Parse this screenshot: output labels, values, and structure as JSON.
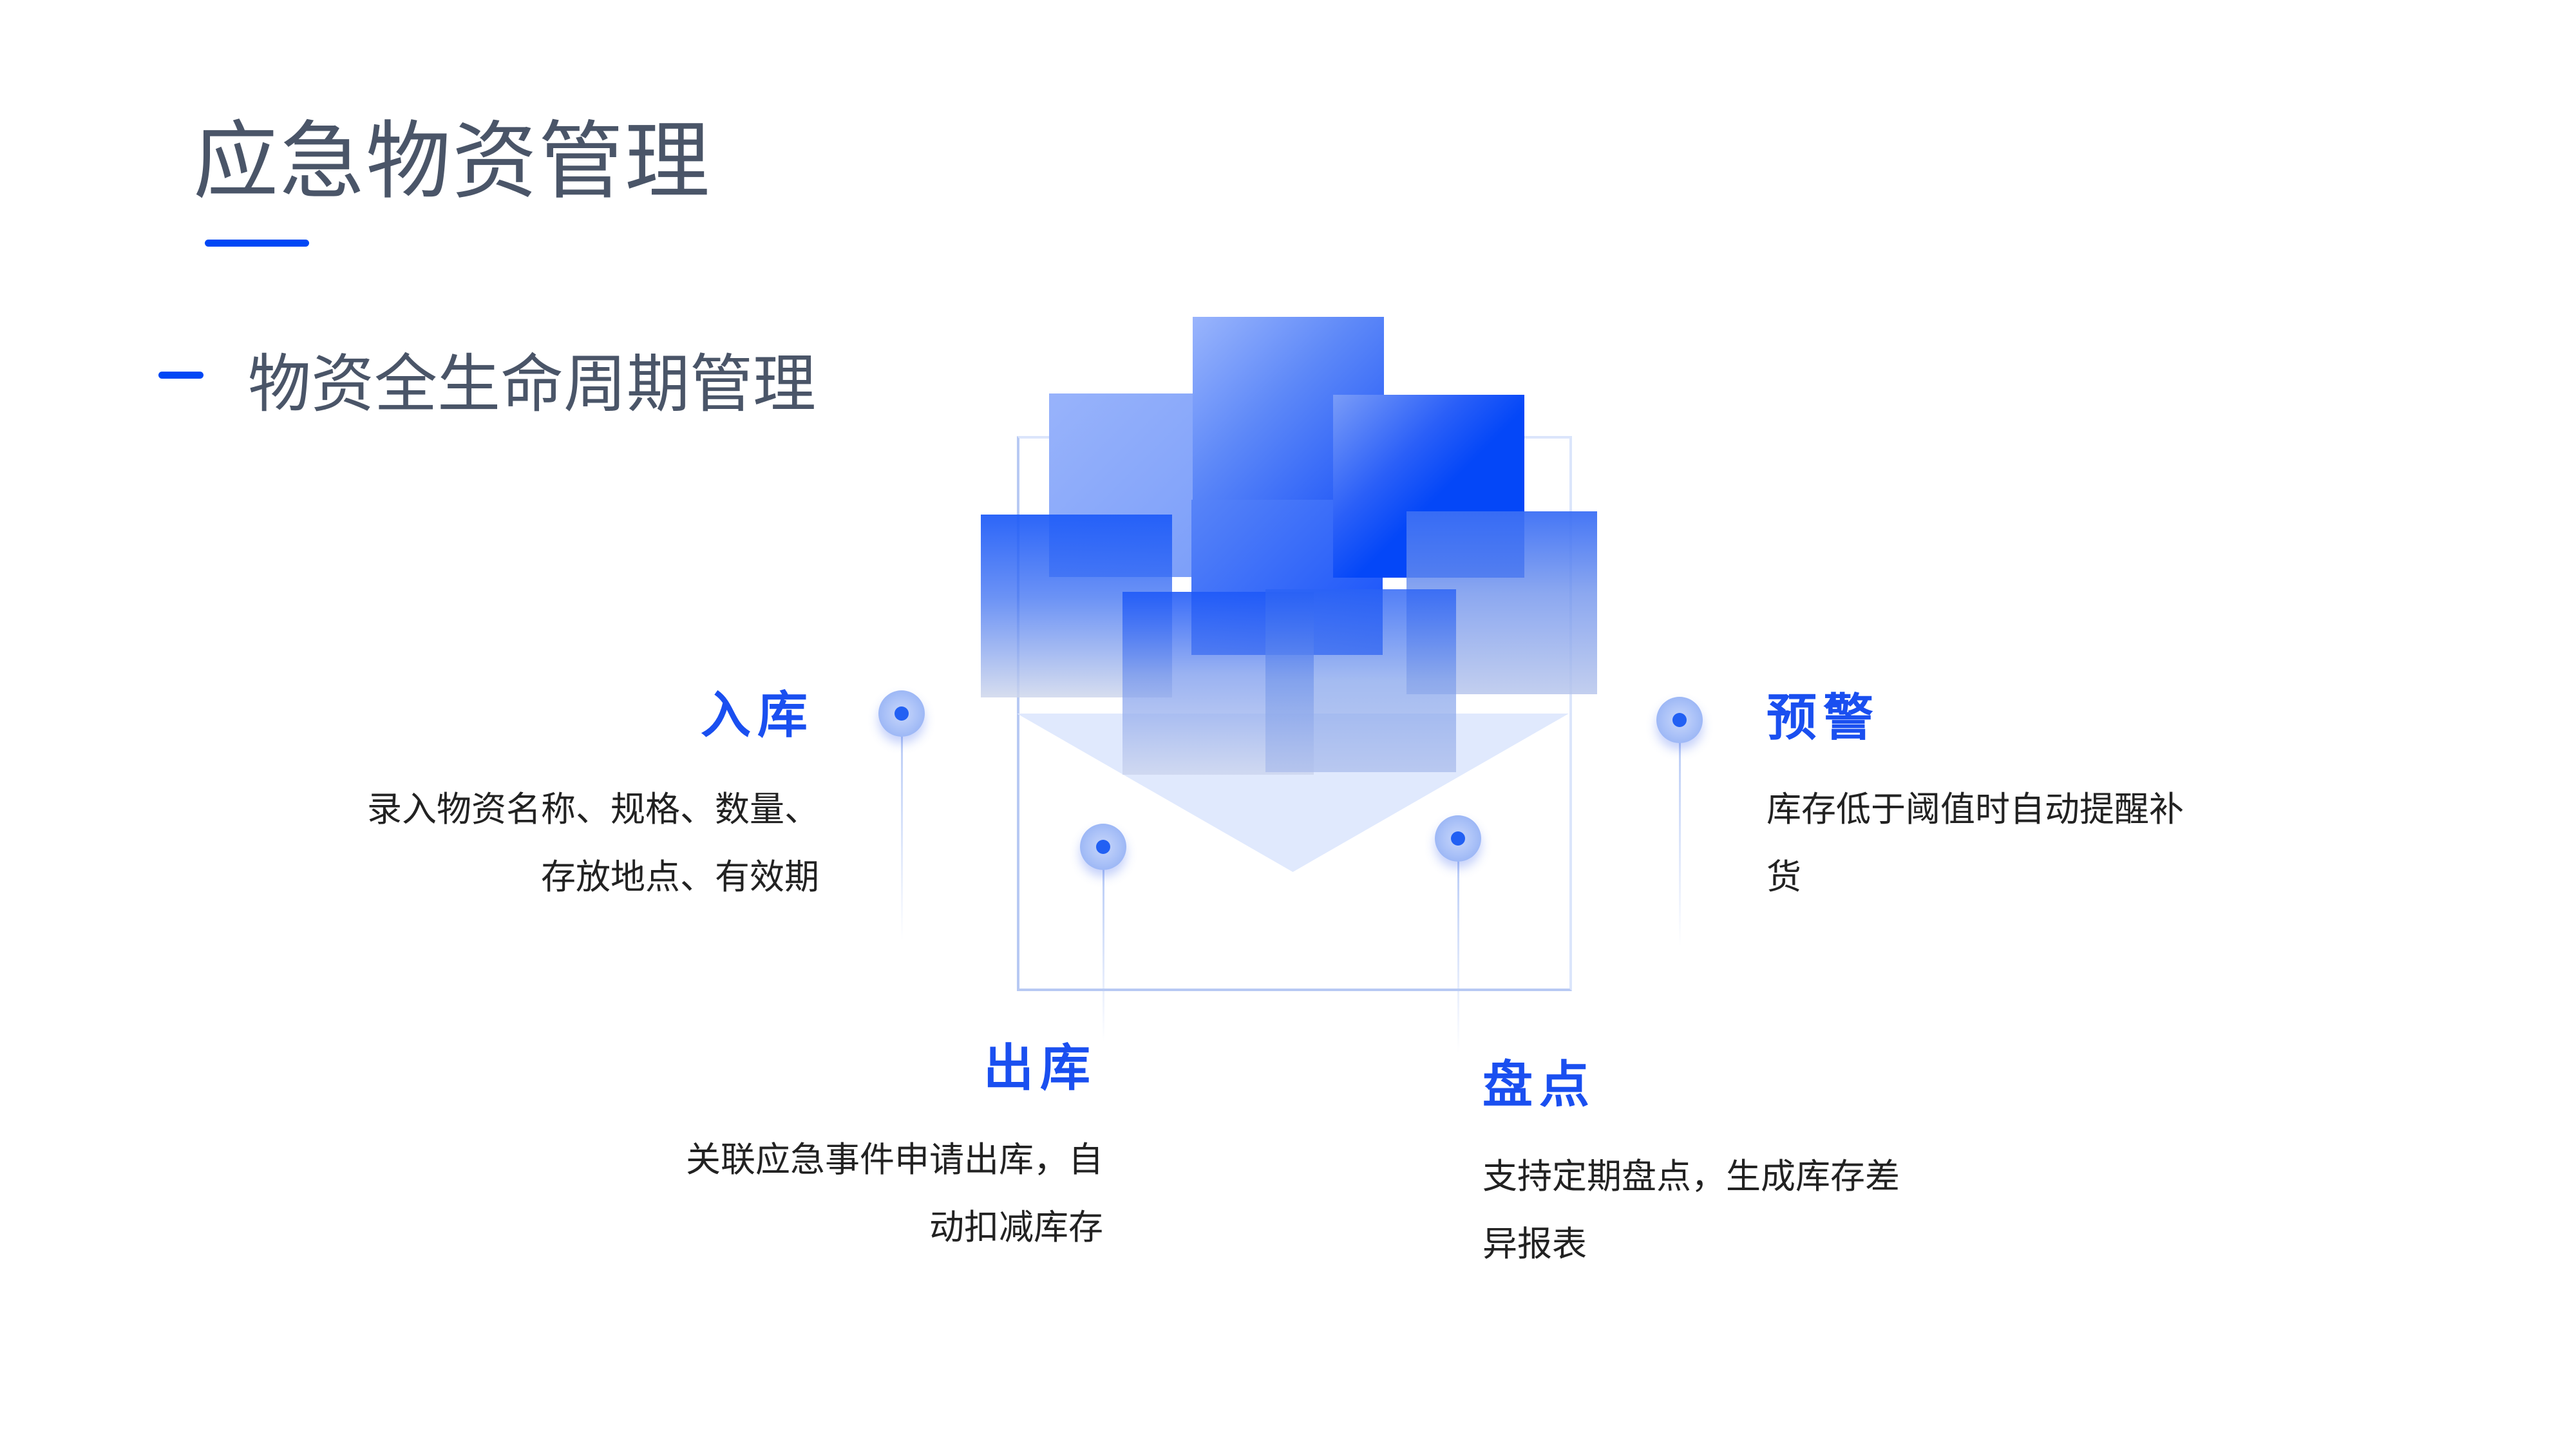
{
  "page": {
    "title": "应急物资管理",
    "subtitle": "物资全生命周期管理"
  },
  "colors": {
    "accent": "#0047f5",
    "heading_blue": "#1a4ff0",
    "title_text": "#4a5568",
    "body_text": "#222222"
  },
  "stages": {
    "inbound": {
      "label": "入库",
      "lines": [
        "录入物资名称、规格、数量、",
        "存放地点、有效期"
      ]
    },
    "outbound": {
      "label": "出库",
      "lines": [
        "关联应急事件申请出库，自",
        "动扣减库存"
      ]
    },
    "inventory": {
      "label": "盘点",
      "lines": [
        "支持定期盘点，生成库存差",
        "异报表"
      ]
    },
    "warning": {
      "label": "预警",
      "lines": [
        "库存低于阈值时自动提醒补",
        "货"
      ]
    }
  }
}
